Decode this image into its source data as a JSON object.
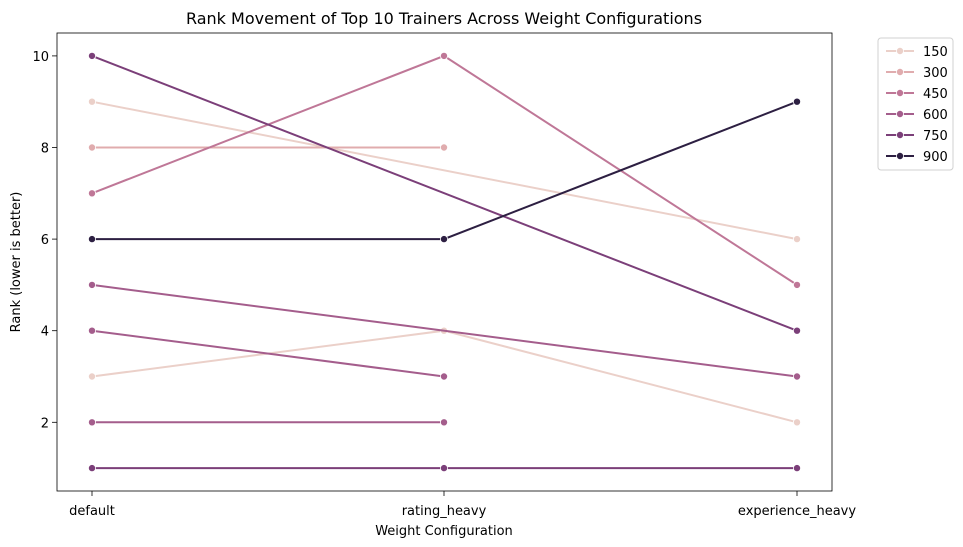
{
  "chart_data": {
    "type": "line",
    "title": "Rank Movement of Top 10 Trainers Across Weight Configurations",
    "xlabel": "Weight Configuration",
    "ylabel": "Rank (lower is better)",
    "categories": [
      "default",
      "rating_heavy",
      "experience_heavy"
    ],
    "ylim": [
      10.5,
      0.5
    ],
    "y_inverted": true,
    "yticks": [
      2,
      4,
      6,
      8,
      10
    ],
    "grid": false,
    "legend_position": "outside-top-right",
    "legend": [
      "150",
      "300",
      "450",
      "600",
      "750",
      "900"
    ],
    "series": [
      {
        "name": "150",
        "color": "#ebd0c9",
        "values": [
          3,
          4,
          2
        ]
      },
      {
        "name": "150",
        "color": "#ebd0c9",
        "values": [
          9,
          null,
          6
        ]
      },
      {
        "name": "300",
        "color": "#e0acae",
        "values": [
          8,
          8,
          null
        ]
      },
      {
        "name": "450",
        "color": "#bf7797",
        "values": [
          7,
          10,
          5
        ]
      },
      {
        "name": "600",
        "color": "#a45d8c",
        "values": [
          2,
          2,
          null
        ]
      },
      {
        "name": "600",
        "color": "#a45d8c",
        "values": [
          4,
          3,
          null
        ]
      },
      {
        "name": "600",
        "color": "#a45d8c",
        "values": [
          5,
          null,
          3
        ]
      },
      {
        "name": "750",
        "color": "#7b3f79",
        "values": [
          1,
          1,
          1
        ]
      },
      {
        "name": "750",
        "color": "#7b3f79",
        "values": [
          10,
          null,
          4
        ]
      },
      {
        "name": "900",
        "color": "#2d1f42",
        "values": [
          6,
          6,
          9
        ]
      }
    ],
    "legend_colors": [
      "#ebd0c9",
      "#e0acae",
      "#bf7797",
      "#a45d8c",
      "#7b3f79",
      "#2d1f42"
    ]
  }
}
